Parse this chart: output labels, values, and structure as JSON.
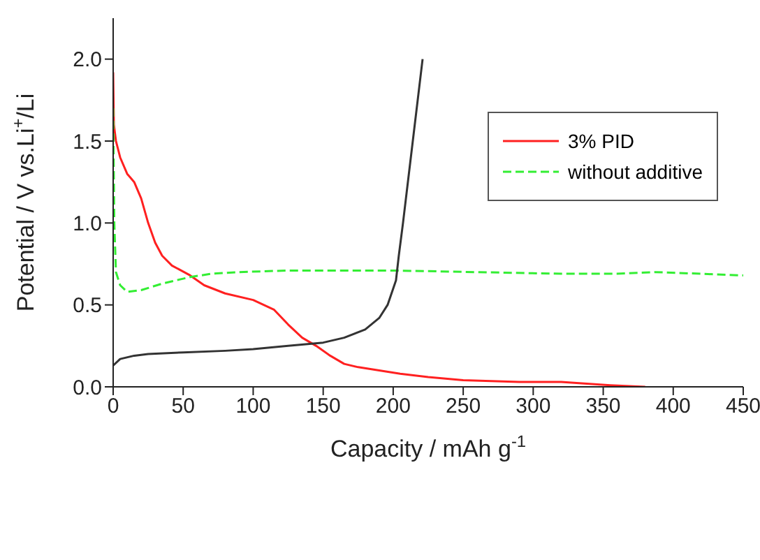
{
  "chart_data": {
    "type": "line",
    "xlabel": "Capacity / mAh g$^{-1}$",
    "ylabel": "Potential / V vs.Li$^{+}$/Li",
    "xlim": [
      0,
      450
    ],
    "xticks": [
      0,
      50,
      100,
      150,
      200,
      250,
      300,
      350,
      400,
      450
    ],
    "ylim": [
      0,
      2.25
    ],
    "yticks": [
      {
        "value": 0,
        "label": "0.0"
      },
      {
        "value": 0.5,
        "label": "0.5"
      },
      {
        "value": 1,
        "label": "1.0"
      },
      {
        "value": 1.5,
        "label": "1.5"
      },
      {
        "value": 2,
        "label": "2.0"
      }
    ],
    "grid": false,
    "legend": "top right",
    "marker": "none",
    "series": [
      {
        "name": "3% PID",
        "color": "#ff2020",
        "line_style": "solid",
        "x": [
          0,
          0.5,
          2,
          5,
          10,
          15,
          20,
          25,
          30,
          35,
          42,
          55,
          65,
          80,
          100,
          115,
          125,
          135,
          145,
          155,
          165,
          175,
          190,
          205,
          225,
          250,
          290,
          320,
          355,
          380
        ],
        "values": [
          1.92,
          1.6,
          1.5,
          1.4,
          1.3,
          1.25,
          1.15,
          1.0,
          0.88,
          0.8,
          0.74,
          0.68,
          0.62,
          0.57,
          0.53,
          0.47,
          0.38,
          0.3,
          0.25,
          0.19,
          0.14,
          0.12,
          0.1,
          0.08,
          0.06,
          0.04,
          0.03,
          0.03,
          0.01,
          0
        ]
      },
      {
        "name": "without additive",
        "color": "#33ee33",
        "line_style": "dashed",
        "x": [
          0,
          0.8,
          2,
          5,
          10,
          20,
          35,
          55,
          70,
          90,
          125,
          200,
          260,
          320,
          360,
          387,
          420,
          450
        ],
        "values": [
          1.7,
          1.0,
          0.7,
          0.62,
          0.58,
          0.59,
          0.63,
          0.67,
          0.69,
          0.7,
          0.71,
          0.71,
          0.7,
          0.69,
          0.69,
          0.7,
          0.69,
          0.68
        ]
      },
      {
        "color": "#333333",
        "line_style": "solid",
        "x": [
          0,
          5,
          15,
          25,
          50,
          80,
          100,
          125,
          150,
          165,
          180,
          190,
          196,
          202,
          204,
          207,
          214,
          221
        ],
        "values": [
          0.13,
          0.17,
          0.19,
          0.2,
          0.21,
          0.22,
          0.23,
          0.25,
          0.27,
          0.3,
          0.35,
          0.42,
          0.5,
          0.65,
          0.8,
          1.0,
          1.5,
          2.0
        ]
      }
    ]
  }
}
